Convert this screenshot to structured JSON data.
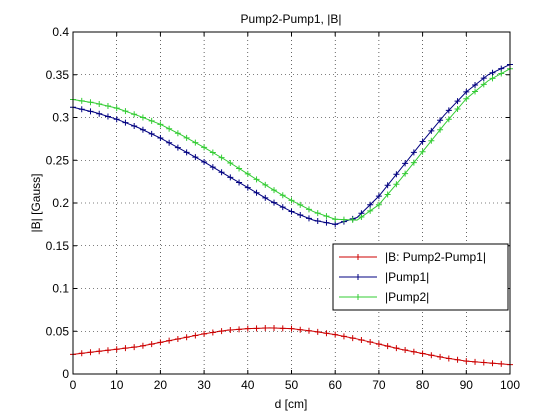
{
  "chart_data": {
    "type": "line",
    "title": "Pump2-Pump1, |B|",
    "xlabel": "d [cm]",
    "ylabel": "|B| [Gauss]",
    "xlim": [
      0,
      100
    ],
    "ylim": [
      0,
      0.4
    ],
    "xticks": [
      0,
      10,
      20,
      30,
      40,
      50,
      60,
      70,
      80,
      90,
      100
    ],
    "yticks": [
      0,
      0.05,
      0.1,
      0.15,
      0.2,
      0.25,
      0.3,
      0.35,
      0.4
    ],
    "xtick_labels": [
      "0",
      "10",
      "20",
      "30",
      "40",
      "50",
      "60",
      "70",
      "80",
      "90",
      "100"
    ],
    "ytick_labels": [
      "0",
      "0.05",
      "0.1",
      "0.15",
      "0.2",
      "0.25",
      "0.3",
      "0.35",
      "0.4"
    ],
    "grid": true,
    "legend_position": "middle-right",
    "marker": "+",
    "x": [
      0,
      5,
      10,
      15,
      20,
      25,
      30,
      35,
      40,
      45,
      50,
      55,
      60,
      65,
      70,
      75,
      80,
      85,
      90,
      95,
      100
    ],
    "series": [
      {
        "name": "|B: Pump2-Pump1|",
        "color": "#cc0000",
        "values": [
          0.023,
          0.026,
          0.029,
          0.032,
          0.037,
          0.042,
          0.047,
          0.051,
          0.053,
          0.054,
          0.053,
          0.05,
          0.046,
          0.041,
          0.035,
          0.029,
          0.024,
          0.019,
          0.015,
          0.013,
          0.011
        ]
      },
      {
        "name": "|Pump1|",
        "color": "#000080",
        "values": [
          0.312,
          0.306,
          0.298,
          0.288,
          0.276,
          0.262,
          0.248,
          0.233,
          0.218,
          0.203,
          0.19,
          0.18,
          0.175,
          0.183,
          0.208,
          0.24,
          0.272,
          0.303,
          0.33,
          0.35,
          0.362
        ]
      },
      {
        "name": "|Pump2|",
        "color": "#33cc33",
        "values": [
          0.321,
          0.317,
          0.311,
          0.302,
          0.292,
          0.279,
          0.265,
          0.25,
          0.234,
          0.218,
          0.203,
          0.19,
          0.181,
          0.18,
          0.198,
          0.228,
          0.26,
          0.292,
          0.322,
          0.343,
          0.357
        ]
      }
    ]
  }
}
